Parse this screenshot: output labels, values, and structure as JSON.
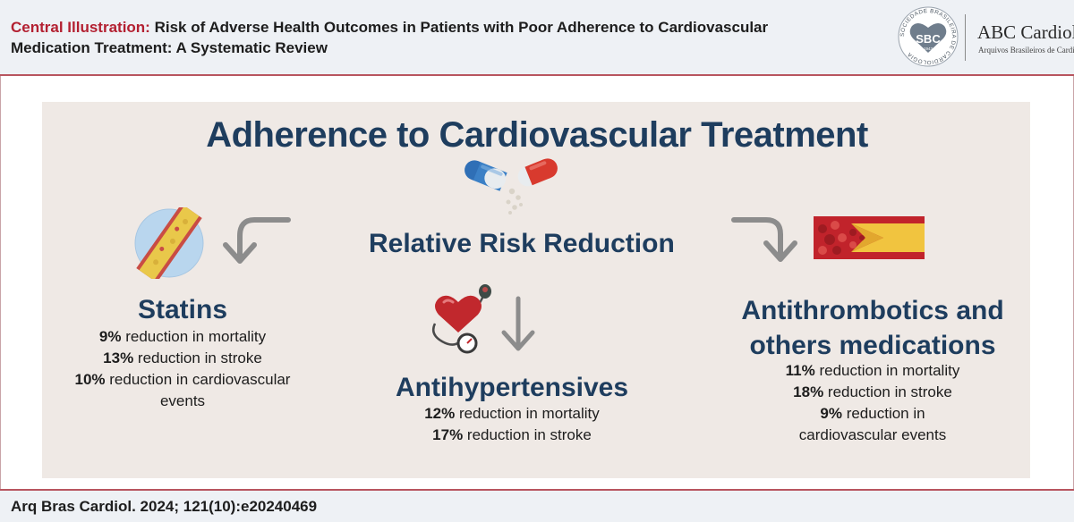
{
  "header": {
    "label": "Central Illustration:",
    "title_line1": "Risk of Adverse Health Outcomes in Patients with Poor Adherence to Cardiovascular",
    "title_line2": "Medication Treatment: A Systematic Review",
    "journal_name": "ABC Cardiol",
    "journal_subtitle": "Arquivos Brasileiros de Cardiologia",
    "society_logo_text": "SBC",
    "society_year": "1943",
    "society_ring_text": "SOCIEDADE BRASILEIRA DE CARDIOLOGIA"
  },
  "infographic": {
    "main_title": "Adherence to Cardiovascular Treatment",
    "center_title": "Relative Risk Reduction",
    "groups": [
      {
        "title_lines": [
          "Statins"
        ],
        "icon": "artery-plaque-icon",
        "stats": [
          {
            "value": "9%",
            "text": " reduction in mortality"
          },
          {
            "value": "13%",
            "text": " reduction in stroke"
          },
          {
            "value": "10%",
            "text": " reduction in cardiovascular"
          }
        ],
        "stats_tail": "events"
      },
      {
        "title_lines": [
          "Antihypertensives"
        ],
        "icon": "heart-blood-pressure-icon",
        "stats": [
          {
            "value": "12%",
            "text": " reduction in mortality"
          },
          {
            "value": "17%",
            "text": " reduction in stroke"
          }
        ]
      },
      {
        "title_lines": [
          "Antithrombotics and",
          "others medications"
        ],
        "icon": "blood-vessel-clot-icon",
        "stats": [
          {
            "value": "11%",
            "text": " reduction in mortality"
          },
          {
            "value": "18%",
            "text": " reduction in stroke"
          },
          {
            "value": "9%",
            "text": " reduction in"
          }
        ],
        "stats_tail": "cardiovascular events"
      }
    ]
  },
  "footer": {
    "citation": "Arq Bras Cardiol. 2024; 121(10):e20240469"
  },
  "colors": {
    "accent_red": "#b32031",
    "title_blue": "#1e3d5e",
    "panel_bg": "#efe9e5",
    "header_bg": "#eef1f5",
    "arrow_gray": "#8c8c8c"
  }
}
